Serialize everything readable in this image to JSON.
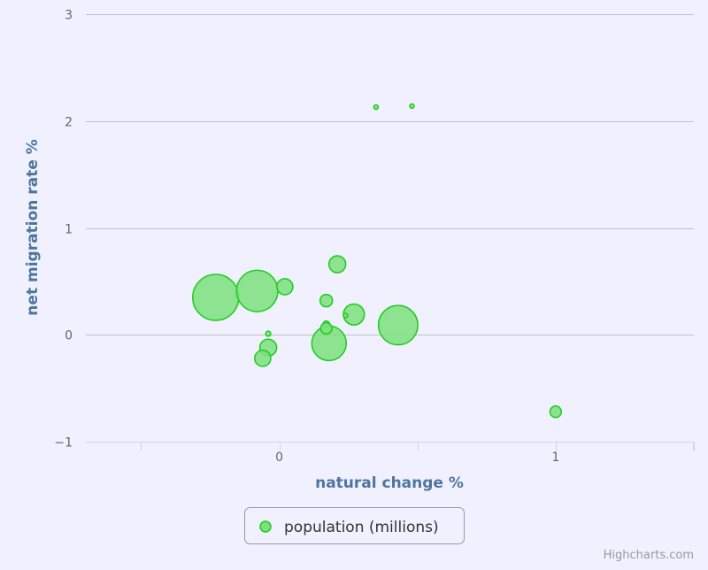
{
  "chart_data": {
    "type": "scatter",
    "subtype": "bubble",
    "xlabel": "natural change %",
    "ylabel": "net migration rate %",
    "xlim": [
      -0.7,
      1.5
    ],
    "ylim": [
      -1,
      3
    ],
    "x_ticks": [
      0,
      1
    ],
    "x_tick_labels": [
      "0",
      "1"
    ],
    "y_ticks": [
      -1,
      0,
      1,
      2,
      3
    ],
    "y_tick_labels": [
      "−1",
      "0",
      "1",
      "2",
      "3"
    ],
    "grid": "horizontal",
    "legend_position": "bottom-center",
    "series": [
      {
        "name": "population (millions)",
        "color": "#7be07b",
        "stroke": "#1ccc1c",
        "points": [
          {
            "x": -0.23,
            "y": 0.35,
            "z": 82
          },
          {
            "x": -0.08,
            "y": 0.41,
            "z": 66
          },
          {
            "x": 0.02,
            "y": 0.45,
            "z": 10
          },
          {
            "x": 0.21,
            "y": 0.66,
            "z": 11
          },
          {
            "x": 0.17,
            "y": 0.32,
            "z": 6
          },
          {
            "x": 0.27,
            "y": 0.19,
            "z": 17
          },
          {
            "x": 0.24,
            "y": 0.18,
            "z": 0.5
          },
          {
            "x": 0.43,
            "y": 0.09,
            "z": 60
          },
          {
            "x": 0.18,
            "y": -0.08,
            "z": 46
          },
          {
            "x": 0.17,
            "y": 0.1,
            "z": 1.5
          },
          {
            "x": 0.17,
            "y": 0.06,
            "z": 5
          },
          {
            "x": -0.04,
            "y": 0.01,
            "z": 1
          },
          {
            "x": -0.04,
            "y": -0.12,
            "z": 11
          },
          {
            "x": -0.06,
            "y": -0.22,
            "z": 10
          },
          {
            "x": 0.35,
            "y": 2.13,
            "z": 0.5
          },
          {
            "x": 0.48,
            "y": 2.14,
            "z": 0.6
          },
          {
            "x": 1.0,
            "y": -0.72,
            "z": 5
          }
        ]
      }
    ]
  },
  "legend": {
    "label": "population (millions)"
  },
  "credits": "Highcharts.com"
}
